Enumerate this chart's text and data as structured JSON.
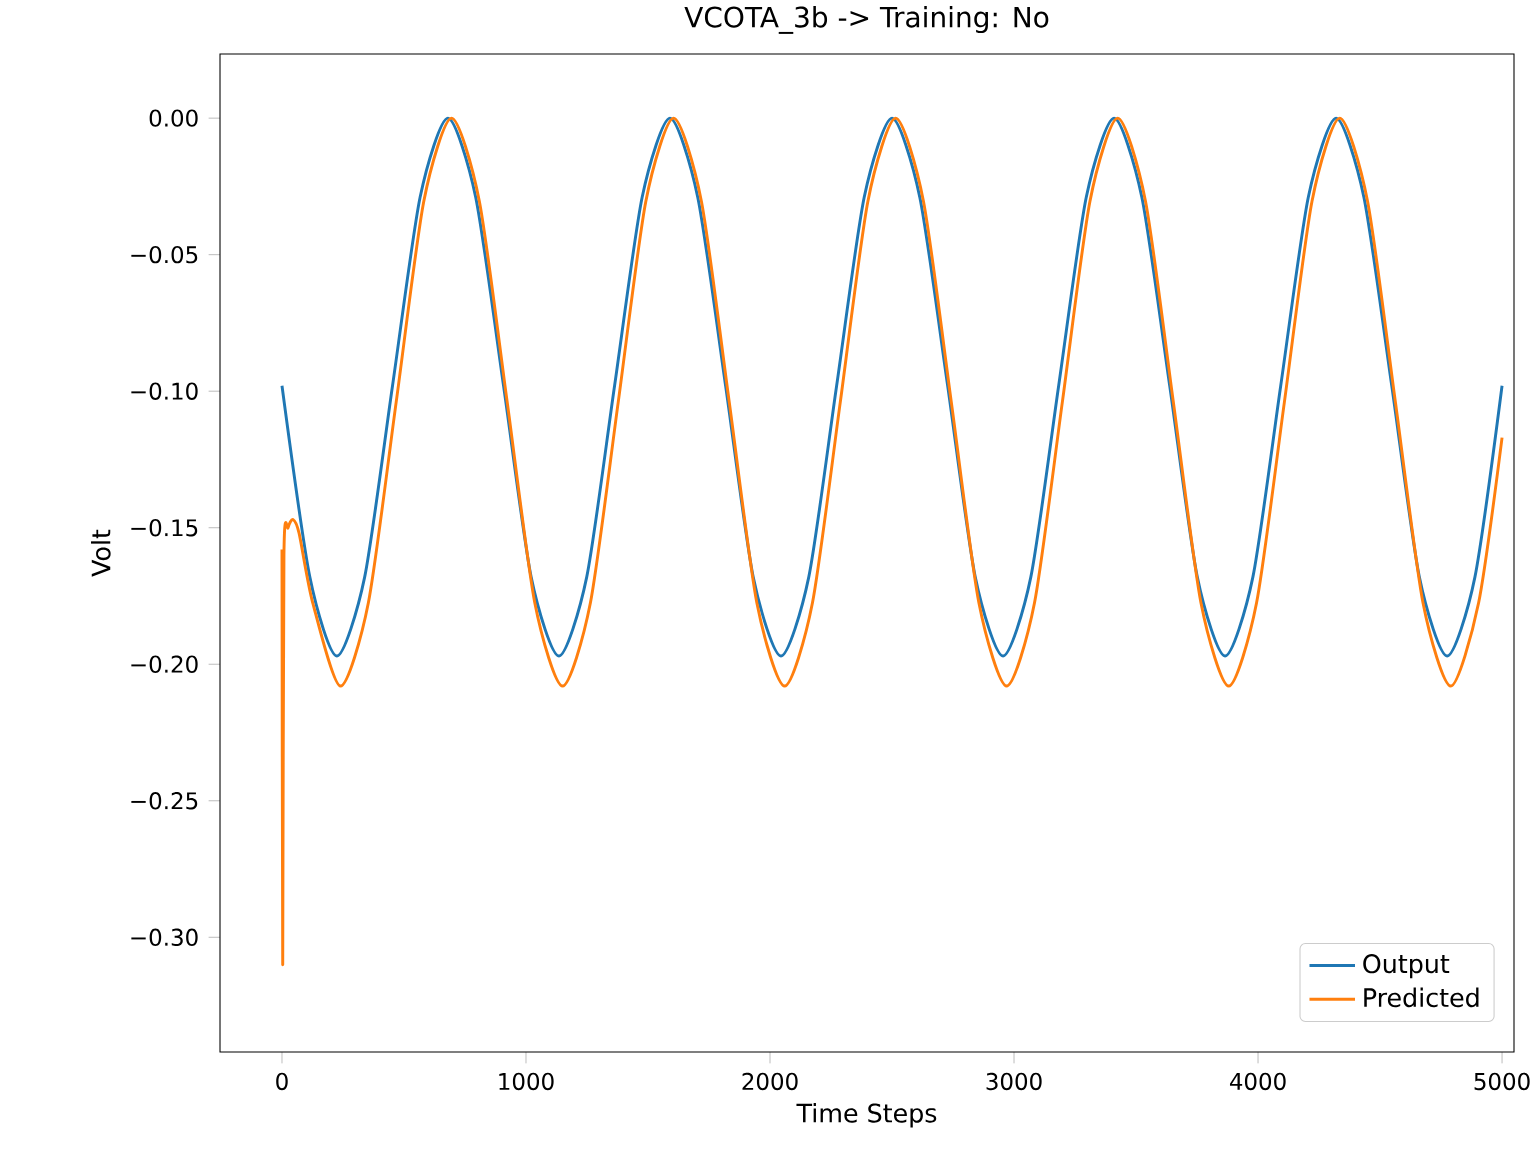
{
  "chart_data": {
    "type": "line",
    "title": "VCOTA_3b -> Training: No",
    "xlabel": "Time Steps",
    "ylabel": "Volt",
    "xlim": [
      -254,
      5049
    ],
    "ylim": [
      -0.342,
      0.0235
    ],
    "xticks": [
      0,
      1000,
      2000,
      3000,
      4000,
      5000
    ],
    "yticks": [
      {
        "value": -0.3,
        "label": "−0.30"
      },
      {
        "value": -0.25,
        "label": "−0.25"
      },
      {
        "value": -0.2,
        "label": "−0.20"
      },
      {
        "value": -0.15,
        "label": "−0.15"
      },
      {
        "value": -0.1,
        "label": "−0.10"
      },
      {
        "value": -0.05,
        "label": "−0.05"
      },
      {
        "value": 0.0,
        "label": "0.00"
      }
    ],
    "grid": false,
    "legend": "bottom right",
    "marker": "none",
    "line_style": "solid",
    "series": [
      {
        "name": "Output",
        "color": "#1f77b4",
        "x": [
          0,
          114,
          225,
          339,
          453,
          566,
          680,
          794,
          908,
          1021,
          1135,
          1249,
          1363,
          1476,
          1590,
          1704,
          1818,
          1931,
          2045,
          2159,
          2273,
          2386,
          2500,
          2614,
          2728,
          2841,
          2955,
          3069,
          3183,
          3296,
          3410,
          3524,
          3638,
          3751,
          3865,
          3979,
          4093,
          4206,
          4320,
          4434,
          4548,
          4661,
          4775,
          4889,
          5000
        ],
        "values": [
          -0.098,
          -0.168,
          -0.197,
          -0.168,
          -0.098,
          -0.029,
          0.0,
          -0.029,
          -0.098,
          -0.168,
          -0.197,
          -0.168,
          -0.098,
          -0.029,
          0.0,
          -0.029,
          -0.098,
          -0.168,
          -0.197,
          -0.168,
          -0.098,
          -0.029,
          0.0,
          -0.029,
          -0.098,
          -0.168,
          -0.197,
          -0.168,
          -0.098,
          -0.029,
          0.0,
          -0.029,
          -0.098,
          -0.168,
          -0.197,
          -0.168,
          -0.098,
          -0.029,
          0.0,
          -0.029,
          -0.098,
          -0.168,
          -0.197,
          -0.168,
          -0.098
        ]
      },
      {
        "name": "Predicted",
        "color": "#ff7f0e",
        "x": [
          0,
          3,
          8,
          25,
          45,
          70,
          126,
          240,
          354,
          468,
          581,
          695,
          809,
          923,
          1036,
          1150,
          1264,
          1378,
          1491,
          1605,
          1719,
          1833,
          1946,
          2060,
          2174,
          2288,
          2401,
          2515,
          2629,
          2743,
          2856,
          2970,
          3084,
          3198,
          3311,
          3425,
          3539,
          3653,
          3766,
          3880,
          3994,
          4108,
          4221,
          4335,
          4449,
          4563,
          4676,
          4790,
          4904,
          5000
        ],
        "values": [
          -0.158,
          -0.31,
          -0.16,
          -0.15,
          -0.147,
          -0.152,
          -0.1775,
          -0.208,
          -0.1775,
          -0.104,
          -0.0305,
          0.0,
          -0.0305,
          -0.104,
          -0.1775,
          -0.208,
          -0.1775,
          -0.104,
          -0.0305,
          0.0,
          -0.0305,
          -0.104,
          -0.1775,
          -0.208,
          -0.1775,
          -0.104,
          -0.0305,
          0.0,
          -0.0305,
          -0.104,
          -0.1775,
          -0.208,
          -0.1775,
          -0.104,
          -0.0305,
          0.0,
          -0.0305,
          -0.104,
          -0.1775,
          -0.208,
          -0.1775,
          -0.104,
          -0.0305,
          0.0,
          -0.0305,
          -0.104,
          -0.1775,
          -0.208,
          -0.1775,
          -0.117
        ]
      }
    ]
  }
}
